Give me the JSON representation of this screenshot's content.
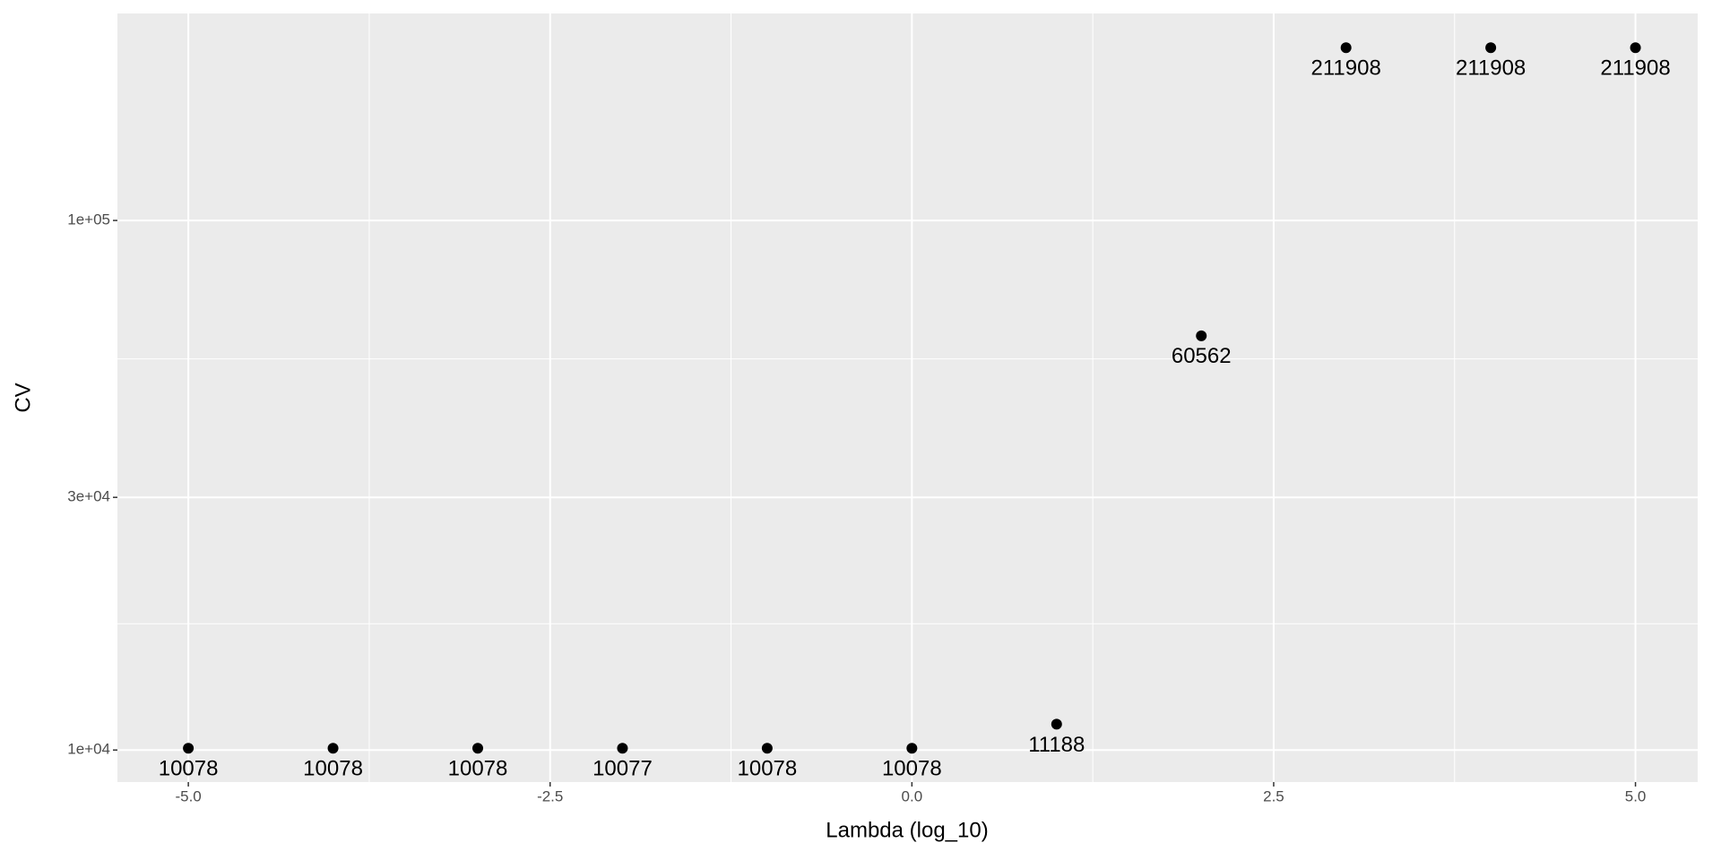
{
  "chart_data": {
    "type": "scatter",
    "x_label": "Lambda (log_10)",
    "y_label": "CV",
    "x": [
      -5,
      -4,
      -3,
      -2,
      -1,
      0,
      1,
      2,
      3,
      4,
      5
    ],
    "values": [
      10078,
      10078,
      10078,
      10077,
      10078,
      10078,
      11188,
      60562,
      211908,
      211908,
      211908
    ],
    "color": "#000000",
    "xlim": [
      -5.49,
      5.43
    ],
    "xticks": [
      {
        "value": -5,
        "label": "-5.0"
      },
      {
        "value": -2.5,
        "label": "-2.5"
      },
      {
        "value": 0,
        "label": "0.0"
      },
      2.5,
      {
        "value": 5,
        "label": "5.0"
      }
    ],
    "ylim": [
      8700,
      246000
    ],
    "y_scale": "log",
    "yticks": [
      {
        "value": 10000,
        "label": "1e+04"
      },
      {
        "value": 30000,
        "label": "3e+04"
      },
      {
        "value": 100000,
        "label": "1e+05"
      }
    ],
    "grid": true
  }
}
